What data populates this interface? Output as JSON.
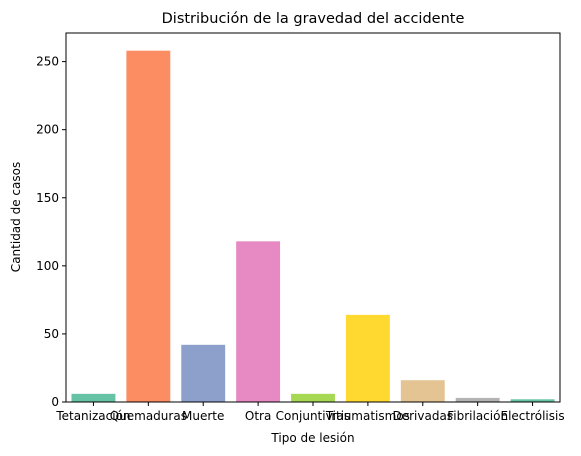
{
  "chart_data": {
    "type": "bar",
    "title": "Distribución de la gravedad del accidente",
    "xlabel": "Tipo de lesión",
    "ylabel": "Cantidad de casos",
    "categories": [
      "Tetanización",
      "Quemaduras",
      "Muerte",
      "Otra",
      "Conjuntivitis",
      "Traumatismos",
      "Derivadas",
      "Fibrilación",
      "Electrólisis"
    ],
    "values": [
      6,
      258,
      42,
      118,
      6,
      64,
      16,
      3,
      2
    ],
    "colors": [
      "#66c2a5",
      "#fc8d62",
      "#8da0cb",
      "#e78ac3",
      "#a6d854",
      "#ffd92f",
      "#e5c494",
      "#b3b3b3",
      "#66c2a5"
    ],
    "ylim": [
      0,
      271
    ],
    "yticks": [
      0,
      50,
      100,
      150,
      200,
      250
    ],
    "grid": false,
    "legend": "none"
  }
}
